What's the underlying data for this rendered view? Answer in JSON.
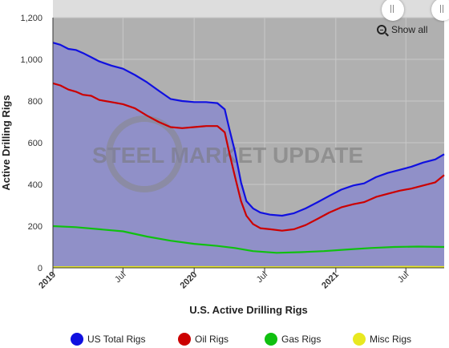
{
  "chart_data": {
    "type": "area",
    "title": "",
    "xlabel": "U.S. Active Drilling Rigs",
    "ylabel": "Active Drilling Rigs",
    "ylim": [
      0,
      1200
    ],
    "yticks": [
      0,
      200,
      400,
      600,
      800,
      1000,
      1200
    ],
    "ytick_labels": [
      "0",
      "200",
      "400",
      "600",
      "800",
      "1,000",
      "1,200"
    ],
    "xlim": [
      "2019-01-01",
      "2021-10-08"
    ],
    "xticks": [
      {
        "date": "2019-01-01",
        "label": "2019",
        "major": true
      },
      {
        "date": "2019-07-01",
        "label": "Jul",
        "major": false
      },
      {
        "date": "2020-01-01",
        "label": "2020",
        "major": true
      },
      {
        "date": "2020-07-01",
        "label": "Jul",
        "major": false
      },
      {
        "date": "2021-01-01",
        "label": "2021",
        "major": true
      },
      {
        "date": "2021-07-01",
        "label": "Jul",
        "major": false
      }
    ],
    "grid": true,
    "legend_position": "bottom",
    "series": [
      {
        "name": "US Total Rigs",
        "color": "#1010e0",
        "points": [
          [
            "2019-01-01",
            1080
          ],
          [
            "2019-01-20",
            1070
          ],
          [
            "2019-02-10",
            1050
          ],
          [
            "2019-03-01",
            1045
          ],
          [
            "2019-03-20",
            1030
          ],
          [
            "2019-04-10",
            1010
          ],
          [
            "2019-05-01",
            990
          ],
          [
            "2019-06-01",
            970
          ],
          [
            "2019-07-01",
            955
          ],
          [
            "2019-08-01",
            925
          ],
          [
            "2019-09-01",
            890
          ],
          [
            "2019-10-01",
            850
          ],
          [
            "2019-11-01",
            810
          ],
          [
            "2019-12-01",
            800
          ],
          [
            "2020-01-01",
            795
          ],
          [
            "2020-02-01",
            795
          ],
          [
            "2020-03-01",
            790
          ],
          [
            "2020-03-20",
            760
          ],
          [
            "2020-04-01",
            665
          ],
          [
            "2020-04-15",
            560
          ],
          [
            "2020-05-01",
            410
          ],
          [
            "2020-05-15",
            320
          ],
          [
            "2020-06-01",
            285
          ],
          [
            "2020-06-20",
            265
          ],
          [
            "2020-07-15",
            255
          ],
          [
            "2020-08-15",
            250
          ],
          [
            "2020-09-15",
            262
          ],
          [
            "2020-10-15",
            285
          ],
          [
            "2020-11-15",
            315
          ],
          [
            "2020-12-15",
            345
          ],
          [
            "2021-01-15",
            375
          ],
          [
            "2021-02-15",
            395
          ],
          [
            "2021-03-15",
            405
          ],
          [
            "2021-04-15",
            435
          ],
          [
            "2021-05-15",
            455
          ],
          [
            "2021-06-15",
            470
          ],
          [
            "2021-07-15",
            485
          ],
          [
            "2021-08-15",
            505
          ],
          [
            "2021-09-15",
            520
          ],
          [
            "2021-10-08",
            545
          ]
        ]
      },
      {
        "name": "Oil Rigs",
        "color": "#cc0000",
        "points": [
          [
            "2019-01-01",
            885
          ],
          [
            "2019-01-20",
            875
          ],
          [
            "2019-02-10",
            855
          ],
          [
            "2019-03-01",
            845
          ],
          [
            "2019-03-20",
            830
          ],
          [
            "2019-04-10",
            825
          ],
          [
            "2019-05-01",
            805
          ],
          [
            "2019-06-01",
            795
          ],
          [
            "2019-07-01",
            785
          ],
          [
            "2019-08-01",
            765
          ],
          [
            "2019-09-01",
            730
          ],
          [
            "2019-10-01",
            700
          ],
          [
            "2019-11-01",
            675
          ],
          [
            "2019-12-01",
            670
          ],
          [
            "2020-01-01",
            675
          ],
          [
            "2020-02-01",
            680
          ],
          [
            "2020-03-01",
            680
          ],
          [
            "2020-03-20",
            650
          ],
          [
            "2020-04-01",
            550
          ],
          [
            "2020-04-15",
            440
          ],
          [
            "2020-05-01",
            320
          ],
          [
            "2020-05-15",
            250
          ],
          [
            "2020-06-01",
            210
          ],
          [
            "2020-06-20",
            190
          ],
          [
            "2020-07-15",
            185
          ],
          [
            "2020-08-15",
            178
          ],
          [
            "2020-09-15",
            185
          ],
          [
            "2020-10-15",
            205
          ],
          [
            "2020-11-15",
            235
          ],
          [
            "2020-12-15",
            265
          ],
          [
            "2021-01-15",
            290
          ],
          [
            "2021-02-15",
            305
          ],
          [
            "2021-03-15",
            315
          ],
          [
            "2021-04-15",
            340
          ],
          [
            "2021-05-15",
            355
          ],
          [
            "2021-06-15",
            370
          ],
          [
            "2021-07-15",
            380
          ],
          [
            "2021-08-15",
            395
          ],
          [
            "2021-09-15",
            410
          ],
          [
            "2021-10-08",
            445
          ]
        ]
      },
      {
        "name": "Gas Rigs",
        "color": "#10c010",
        "points": [
          [
            "2019-01-01",
            200
          ],
          [
            "2019-03-01",
            195
          ],
          [
            "2019-05-01",
            185
          ],
          [
            "2019-07-01",
            175
          ],
          [
            "2019-09-01",
            150
          ],
          [
            "2019-11-01",
            130
          ],
          [
            "2020-01-01",
            115
          ],
          [
            "2020-03-01",
            105
          ],
          [
            "2020-04-15",
            95
          ],
          [
            "2020-06-01",
            80
          ],
          [
            "2020-08-01",
            72
          ],
          [
            "2020-10-01",
            75
          ],
          [
            "2020-12-01",
            80
          ],
          [
            "2021-02-01",
            88
          ],
          [
            "2021-04-01",
            95
          ],
          [
            "2021-06-01",
            100
          ],
          [
            "2021-08-01",
            102
          ],
          [
            "2021-10-08",
            100
          ]
        ]
      },
      {
        "name": "Misc Rigs",
        "color": "#e8e820",
        "points": [
          [
            "2019-01-01",
            3
          ],
          [
            "2019-07-01",
            4
          ],
          [
            "2020-01-01",
            4
          ],
          [
            "2020-07-01",
            3
          ],
          [
            "2021-01-01",
            3
          ],
          [
            "2021-07-01",
            5
          ],
          [
            "2021-10-08",
            4
          ]
        ]
      }
    ]
  },
  "watermark": "STEEL MARKET UPDATE",
  "controls": {
    "show_all_label": "Show all"
  },
  "colors": {
    "plot_bg": "#b0b0b0",
    "area_fill": "#9090c8",
    "navigator_bg": "#dddddd"
  }
}
